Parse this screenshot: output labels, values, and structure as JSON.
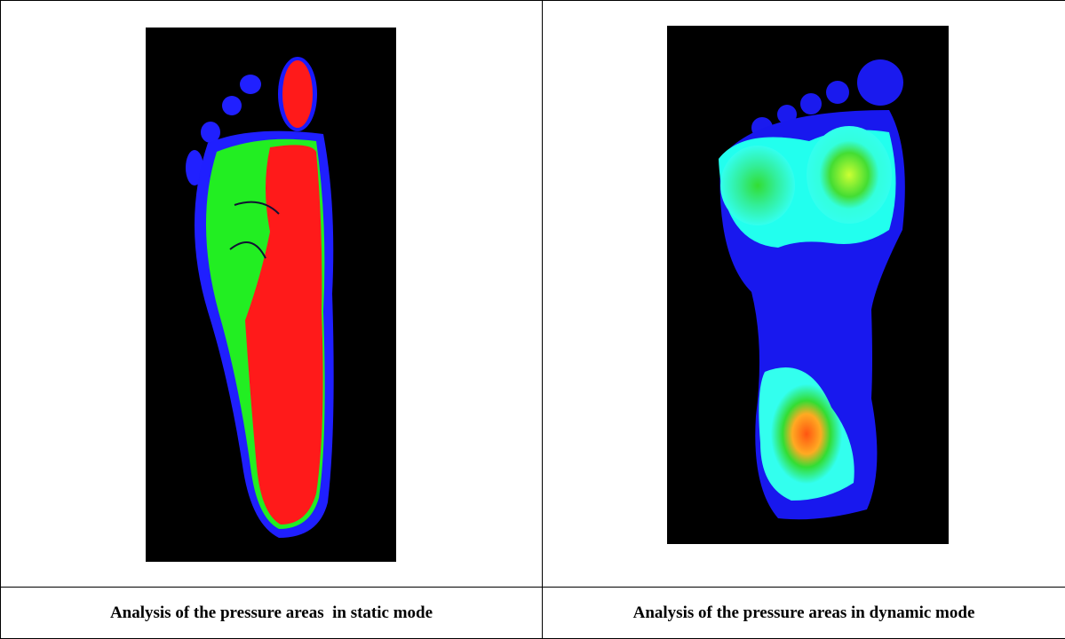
{
  "table": {
    "captions": [
      "Analysis of the pressure areas  in static mode",
      "Analysis of the pressure areas in dynamic mode"
    ]
  }
}
